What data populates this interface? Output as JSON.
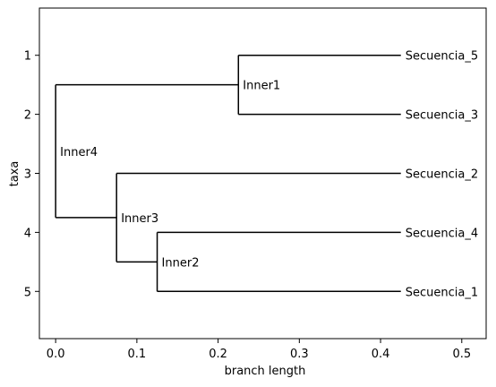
{
  "chart_data": {
    "type": "tree",
    "xlabel": "branch length",
    "ylabel": "taxa",
    "xlim": [
      -0.02,
      0.53
    ],
    "ylim": [
      5.8,
      0.2
    ],
    "xticks": [
      0.0,
      0.1,
      0.2,
      0.3,
      0.4,
      0.5
    ],
    "xtick_labels": [
      "0.0",
      "0.1",
      "0.2",
      "0.3",
      "0.4",
      "0.5"
    ],
    "yticks": [
      1,
      2,
      3,
      4,
      5
    ],
    "ytick_labels": [
      "1",
      "2",
      "3",
      "4",
      "5"
    ],
    "grid": false,
    "nodes": [
      {
        "id": "Inner4",
        "label": "Inner4",
        "x": 0.0,
        "y": 2.625,
        "children": [
          "Inner1",
          "Inner3"
        ]
      },
      {
        "id": "Inner1",
        "label": "Inner1",
        "x": 0.225,
        "y": 1.5,
        "children": [
          "Secuencia_5",
          "Secuencia_3"
        ]
      },
      {
        "id": "Inner3",
        "label": "Inner3",
        "x": 0.075,
        "y": 3.75,
        "children": [
          "Secuencia_2",
          "Inner2"
        ]
      },
      {
        "id": "Inner2",
        "label": "Inner2",
        "x": 0.125,
        "y": 4.5,
        "children": [
          "Secuencia_4",
          "Secuencia_1"
        ]
      },
      {
        "id": "Secuencia_5",
        "label": "Secuencia_5",
        "x": 0.425,
        "y": 1
      },
      {
        "id": "Secuencia_3",
        "label": "Secuencia_3",
        "x": 0.425,
        "y": 2
      },
      {
        "id": "Secuencia_2",
        "label": "Secuencia_2",
        "x": 0.425,
        "y": 3
      },
      {
        "id": "Secuencia_4",
        "label": "Secuencia_4",
        "x": 0.425,
        "y": 4
      },
      {
        "id": "Secuencia_1",
        "label": "Secuencia_1",
        "x": 0.425,
        "y": 5
      }
    ],
    "root_y_span": [
      1.5,
      3.75
    ],
    "line_color": "#000000"
  }
}
